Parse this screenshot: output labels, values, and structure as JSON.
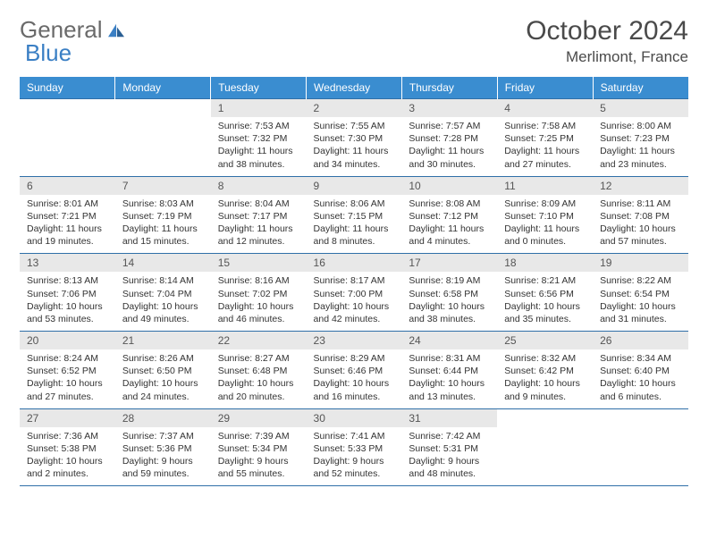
{
  "brand": {
    "part1": "General",
    "part2": "Blue"
  },
  "title": "October 2024",
  "location": "Merlimont, France",
  "weekdays": [
    "Sunday",
    "Monday",
    "Tuesday",
    "Wednesday",
    "Thursday",
    "Friday",
    "Saturday"
  ],
  "colors": {
    "header_bg": "#3a8dd0",
    "header_text": "#ffffff",
    "rule": "#2f6fa8",
    "daynum_bg": "#e8e8e8",
    "logo_gray": "#6a6a6a",
    "logo_blue": "#3a7fc4"
  },
  "weeks": [
    [
      null,
      null,
      {
        "n": "1",
        "sr": "7:53 AM",
        "ss": "7:32 PM",
        "dl": "11 hours and 38 minutes."
      },
      {
        "n": "2",
        "sr": "7:55 AM",
        "ss": "7:30 PM",
        "dl": "11 hours and 34 minutes."
      },
      {
        "n": "3",
        "sr": "7:57 AM",
        "ss": "7:28 PM",
        "dl": "11 hours and 30 minutes."
      },
      {
        "n": "4",
        "sr": "7:58 AM",
        "ss": "7:25 PM",
        "dl": "11 hours and 27 minutes."
      },
      {
        "n": "5",
        "sr": "8:00 AM",
        "ss": "7:23 PM",
        "dl": "11 hours and 23 minutes."
      }
    ],
    [
      {
        "n": "6",
        "sr": "8:01 AM",
        "ss": "7:21 PM",
        "dl": "11 hours and 19 minutes."
      },
      {
        "n": "7",
        "sr": "8:03 AM",
        "ss": "7:19 PM",
        "dl": "11 hours and 15 minutes."
      },
      {
        "n": "8",
        "sr": "8:04 AM",
        "ss": "7:17 PM",
        "dl": "11 hours and 12 minutes."
      },
      {
        "n": "9",
        "sr": "8:06 AM",
        "ss": "7:15 PM",
        "dl": "11 hours and 8 minutes."
      },
      {
        "n": "10",
        "sr": "8:08 AM",
        "ss": "7:12 PM",
        "dl": "11 hours and 4 minutes."
      },
      {
        "n": "11",
        "sr": "8:09 AM",
        "ss": "7:10 PM",
        "dl": "11 hours and 0 minutes."
      },
      {
        "n": "12",
        "sr": "8:11 AM",
        "ss": "7:08 PM",
        "dl": "10 hours and 57 minutes."
      }
    ],
    [
      {
        "n": "13",
        "sr": "8:13 AM",
        "ss": "7:06 PM",
        "dl": "10 hours and 53 minutes."
      },
      {
        "n": "14",
        "sr": "8:14 AM",
        "ss": "7:04 PM",
        "dl": "10 hours and 49 minutes."
      },
      {
        "n": "15",
        "sr": "8:16 AM",
        "ss": "7:02 PM",
        "dl": "10 hours and 46 minutes."
      },
      {
        "n": "16",
        "sr": "8:17 AM",
        "ss": "7:00 PM",
        "dl": "10 hours and 42 minutes."
      },
      {
        "n": "17",
        "sr": "8:19 AM",
        "ss": "6:58 PM",
        "dl": "10 hours and 38 minutes."
      },
      {
        "n": "18",
        "sr": "8:21 AM",
        "ss": "6:56 PM",
        "dl": "10 hours and 35 minutes."
      },
      {
        "n": "19",
        "sr": "8:22 AM",
        "ss": "6:54 PM",
        "dl": "10 hours and 31 minutes."
      }
    ],
    [
      {
        "n": "20",
        "sr": "8:24 AM",
        "ss": "6:52 PM",
        "dl": "10 hours and 27 minutes."
      },
      {
        "n": "21",
        "sr": "8:26 AM",
        "ss": "6:50 PM",
        "dl": "10 hours and 24 minutes."
      },
      {
        "n": "22",
        "sr": "8:27 AM",
        "ss": "6:48 PM",
        "dl": "10 hours and 20 minutes."
      },
      {
        "n": "23",
        "sr": "8:29 AM",
        "ss": "6:46 PM",
        "dl": "10 hours and 16 minutes."
      },
      {
        "n": "24",
        "sr": "8:31 AM",
        "ss": "6:44 PM",
        "dl": "10 hours and 13 minutes."
      },
      {
        "n": "25",
        "sr": "8:32 AM",
        "ss": "6:42 PM",
        "dl": "10 hours and 9 minutes."
      },
      {
        "n": "26",
        "sr": "8:34 AM",
        "ss": "6:40 PM",
        "dl": "10 hours and 6 minutes."
      }
    ],
    [
      {
        "n": "27",
        "sr": "7:36 AM",
        "ss": "5:38 PM",
        "dl": "10 hours and 2 minutes."
      },
      {
        "n": "28",
        "sr": "7:37 AM",
        "ss": "5:36 PM",
        "dl": "9 hours and 59 minutes."
      },
      {
        "n": "29",
        "sr": "7:39 AM",
        "ss": "5:34 PM",
        "dl": "9 hours and 55 minutes."
      },
      {
        "n": "30",
        "sr": "7:41 AM",
        "ss": "5:33 PM",
        "dl": "9 hours and 52 minutes."
      },
      {
        "n": "31",
        "sr": "7:42 AM",
        "ss": "5:31 PM",
        "dl": "9 hours and 48 minutes."
      },
      null,
      null
    ]
  ],
  "labels": {
    "sunrise": "Sunrise: ",
    "sunset": "Sunset: ",
    "daylight": "Daylight: "
  }
}
